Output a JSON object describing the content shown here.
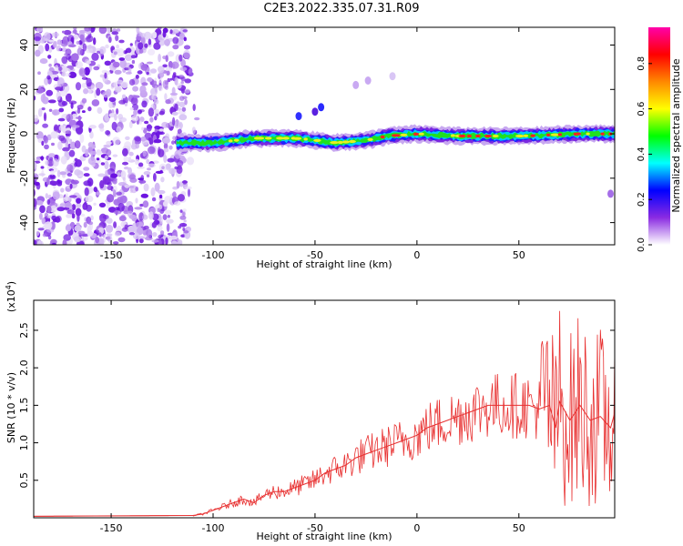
{
  "title": "C2E3.2022.335.07.31.R09",
  "chart_data": [
    {
      "type": "heatmap",
      "xlabel": "Height of straight line (km)",
      "ylabel": "Frequency (Hz)",
      "xlim": [
        -188,
        97
      ],
      "ylim": [
        -50,
        48
      ],
      "xticks": [
        -150,
        -100,
        -50,
        0,
        50
      ],
      "yticks": [
        -40,
        -20,
        0,
        20,
        40
      ],
      "colorbar": {
        "label": "Normalized spectral amplitude",
        "range": [
          0.0,
          0.96
        ],
        "ticks": [
          "0.0",
          "0.2",
          "0.4",
          "0.6",
          "0.8"
        ],
        "colors": [
          "#ffffff",
          "#8a2be2",
          "#0000ff",
          "#00ffff",
          "#00ff00",
          "#ffff00",
          "#ff8800",
          "#ff0000",
          "#ff00aa"
        ]
      },
      "band_center_hz": {
        "x": [
          -118,
          -100,
          -80,
          -60,
          -40,
          -25,
          -15,
          0,
          20,
          50,
          80,
          97
        ],
        "y": [
          -4,
          -4,
          -2,
          -2,
          -4,
          -3,
          -1,
          0,
          -1,
          -1,
          0,
          0
        ]
      },
      "noise_region_km": [
        -188,
        -112
      ]
    },
    {
      "type": "line",
      "xlabel": "Height of straight line (km)",
      "ylabel": "SNR (10 * v/v)",
      "yunit": "(x10^4)",
      "xlim": [
        -188,
        97
      ],
      "ylim": [
        0.0,
        2.9
      ],
      "xticks": [
        -150,
        -100,
        -50,
        0,
        50
      ],
      "yticks": [
        0.5,
        1.0,
        1.5,
        2.0,
        2.5
      ],
      "color": "#e83030",
      "series": [
        {
          "x": [
            -188,
            -110,
            -105,
            -100,
            -95,
            -90,
            -85,
            -80,
            -75,
            -70,
            -65,
            -60,
            -55,
            -50,
            -45,
            -40,
            -35,
            -30,
            -25,
            -20,
            -15,
            -10,
            -5,
            0,
            5,
            10,
            15,
            20,
            25,
            30,
            35,
            40,
            45,
            50,
            55,
            60,
            65,
            68,
            70,
            75,
            80,
            85,
            90,
            95,
            97
          ],
          "y": [
            0.02,
            0.03,
            0.05,
            0.1,
            0.15,
            0.2,
            0.25,
            0.2,
            0.3,
            0.35,
            0.35,
            0.4,
            0.45,
            0.5,
            0.6,
            0.65,
            0.7,
            0.8,
            0.85,
            0.9,
            0.95,
            1.0,
            1.05,
            1.1,
            1.2,
            1.25,
            1.3,
            1.35,
            1.4,
            1.45,
            1.5,
            1.5,
            1.5,
            1.5,
            1.5,
            1.45,
            1.5,
            1.2,
            1.55,
            1.3,
            1.5,
            1.3,
            1.35,
            1.2,
            1.4
          ]
        }
      ]
    }
  ],
  "axes_text": {
    "heat_xlabel": "Height of straight line (km)",
    "heat_ylabel": "Frequency (Hz)",
    "line_xlabel": "Height of straight line (km)",
    "line_ylabel": "SNR (10 * v/v)",
    "line_unit": "(x10^4)",
    "colorbar_label": "Normalized spectral amplitude"
  }
}
